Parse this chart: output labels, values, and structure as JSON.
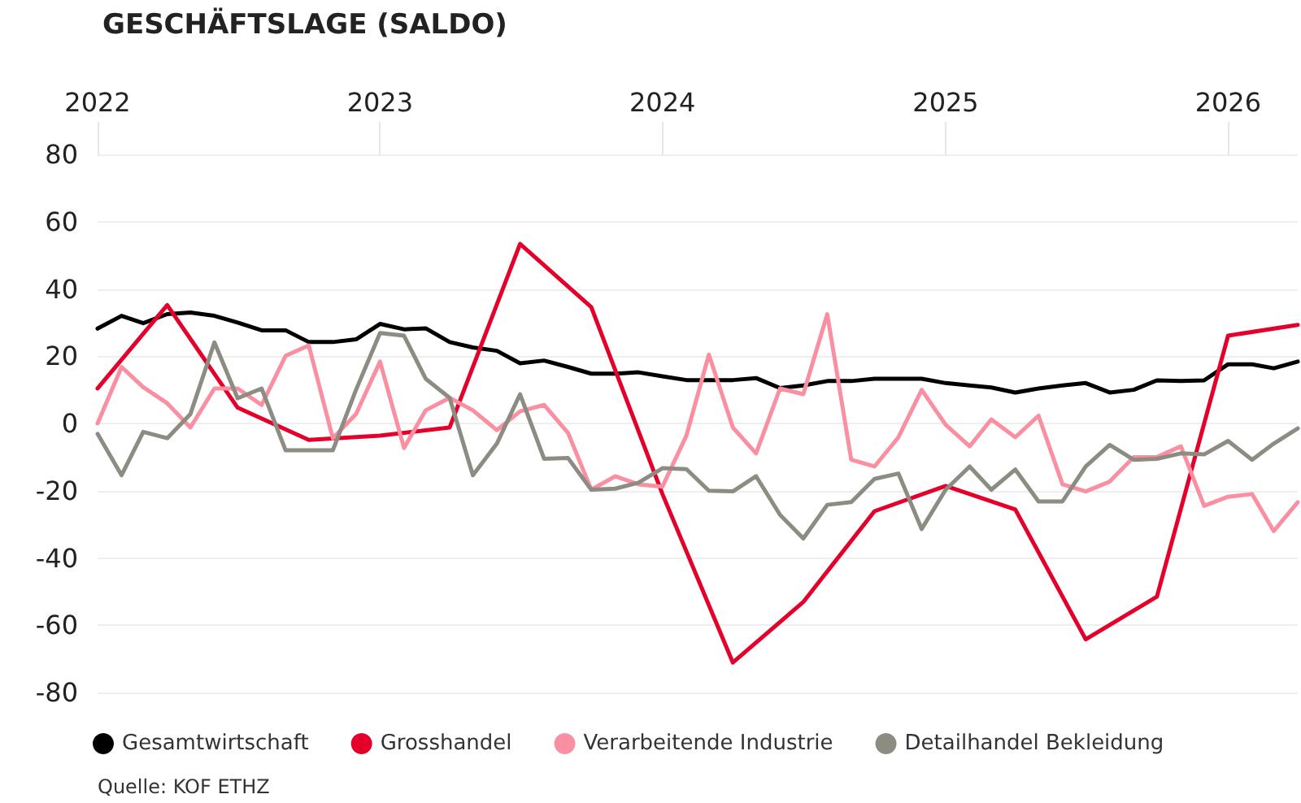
{
  "chart_data": {
    "type": "line",
    "title": "GESCHÄFTSLAGE (SALDO)",
    "x": [
      "2022-01",
      "2022-02",
      "2022-03",
      "2022-04",
      "2022-05",
      "2022-06",
      "2022-07",
      "2022-08",
      "2022-09",
      "2022-10",
      "2022-11",
      "2022-12",
      "2023-01",
      "2023-02",
      "2023-03",
      "2023-04",
      "2023-05",
      "2023-06",
      "2023-07",
      "2023-08",
      "2023-09",
      "2023-10",
      "2023-11",
      "2023-12",
      "2024-01",
      "2024-02",
      "2024-03",
      "2024-04",
      "2024-05",
      "2024-06",
      "2024-07",
      "2024-08",
      "2024-09",
      "2024-10",
      "2024-11",
      "2024-12",
      "2025-01",
      "2025-02",
      "2025-03",
      "2025-04",
      "2025-05",
      "2025-06",
      "2025-07",
      "2025-08",
      "2025-09",
      "2025-10",
      "2025-11",
      "2025-12",
      "2026-01",
      "2026-02",
      "2026-03",
      "2026-04"
    ],
    "series": [
      {
        "name": "Gesamtwirtschaft",
        "color": "#000000",
        "values": [
          28.2,
          32,
          29.8,
          32.5,
          33,
          32,
          30,
          27.7,
          27.7,
          24.2,
          24.2,
          25,
          29.6,
          28,
          28.3,
          24.2,
          22.6,
          21.6,
          17.9,
          18.7,
          16.8,
          14.8,
          14.8,
          15.2,
          14,
          12.9,
          12.9,
          12.9,
          13.5,
          10.5,
          11.3,
          12.6,
          12.6,
          13.3,
          13.3,
          13.3,
          12,
          11.3,
          10.7,
          9.2,
          10.4,
          11.3,
          12,
          9.2,
          10,
          12.8,
          12.6,
          12.8,
          17.6,
          17.6,
          16.4,
          18.4
        ]
      },
      {
        "name": "Grosshandel",
        "color": "#e4002b",
        "x": [
          "2022-01",
          "2022-04",
          "2022-07",
          "2022-10",
          "2023-01",
          "2023-04",
          "2023-07",
          "2023-10",
          "2024-01",
          "2024-04",
          "2024-07",
          "2024-10",
          "2025-01",
          "2025-04",
          "2025-07",
          "2025-10",
          "2026-01",
          "2026-04"
        ],
        "values": [
          10.4,
          35.2,
          4.7,
          -4.9,
          -3.6,
          -1.2,
          53.4,
          34.6,
          -21,
          -71.1,
          -53.1,
          -26.1,
          -18.6,
          -25.6,
          -64.2,
          -51.5,
          26.1,
          29.3
        ]
      },
      {
        "name": "Verarbeitende Industrie",
        "color": "#fa8fa1",
        "values": [
          0,
          16.8,
          10.8,
          6,
          -1.2,
          10.4,
          10.4,
          5.5,
          20.1,
          23.2,
          -4.4,
          2.8,
          18.4,
          -7.3,
          3.9,
          7.6,
          3.9,
          -2,
          3.6,
          5.5,
          -2.8,
          -19.7,
          -15.7,
          -18.1,
          -18.8,
          -3.6,
          20.5,
          -1.2,
          -8.9,
          10.4,
          8.7,
          32.5,
          -10.8,
          -12.8,
          -4.1,
          10,
          -0.4,
          -6.8,
          1.2,
          -4.1,
          2.3,
          -18.1,
          -20.2,
          -17.3,
          -10,
          -10,
          -6.8,
          -24.5,
          -21.8,
          -21,
          -32,
          -23.4
        ]
      },
      {
        "name": "Detailhandel Bekleidung",
        "color": "#8c8c82",
        "values": [
          -3.1,
          -15.4,
          -2.5,
          -4.4,
          2.8,
          24.1,
          7.5,
          10.4,
          -8,
          -8,
          -8,
          10,
          26.9,
          26.1,
          13.3,
          7.6,
          -15.4,
          -6,
          8.7,
          -10.5,
          -10.3,
          -19.7,
          -19.4,
          -17.6,
          -13.3,
          -13.6,
          -20,
          -20.2,
          -15.7,
          -27.2,
          -34.2,
          -24.2,
          -23.4,
          -16.5,
          -14.9,
          -31.4,
          -19.7,
          -12.8,
          -19.7,
          -13.7,
          -23.2,
          -23.2,
          -12.8,
          -6.4,
          -10.8,
          -10.5,
          -8.9,
          -9.2,
          -5.2,
          -10.8,
          -6,
          -1.5
        ]
      }
    ],
    "xlim": [
      "2022-01",
      "2026-04"
    ],
    "xticks": [
      "2022",
      "2023",
      "2024",
      "2025",
      "2026"
    ],
    "ylim": [
      -80,
      80
    ],
    "yticks": [
      -80,
      -60,
      -40,
      -20,
      0,
      20,
      40,
      60,
      80
    ],
    "grid": "y",
    "legend": "bottom left",
    "marker": "none",
    "line_style": "solid",
    "annotations": [
      "Quelle: KOF ETHZ"
    ]
  }
}
